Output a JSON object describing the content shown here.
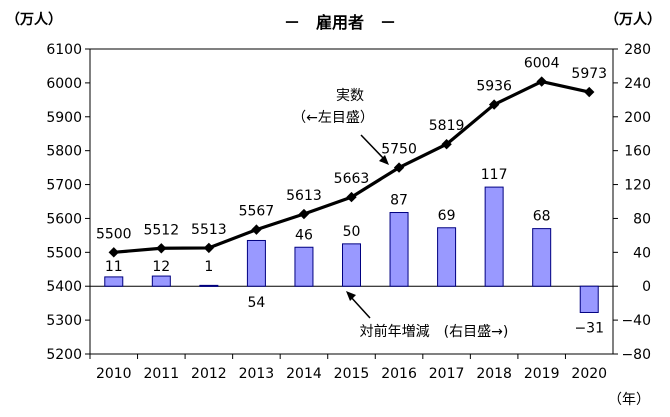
{
  "chart_data": {
    "type": "bar+line",
    "title": "－　雇用者　－",
    "left_unit": "（万人）",
    "right_unit": "（万人）",
    "x_unit": "（年）",
    "categories": [
      "2010",
      "2011",
      "2012",
      "2013",
      "2014",
      "2015",
      "2016",
      "2017",
      "2018",
      "2019",
      "2020"
    ],
    "line": {
      "values": [
        5500,
        5512,
        5513,
        5567,
        5613,
        5663,
        5750,
        5819,
        5936,
        6004,
        5973
      ],
      "labels": [
        "5500",
        "5512",
        "5513",
        "5567",
        "5613",
        "5663",
        "5750",
        "5819",
        "5936",
        "6004",
        "5973"
      ]
    },
    "bars": {
      "values": [
        11,
        12,
        1,
        54,
        46,
        50,
        87,
        69,
        117,
        68,
        -31
      ],
      "labels": [
        "11",
        "12",
        "1",
        "54",
        "46",
        "50",
        "87",
        "69",
        "117",
        "68",
        "−31"
      ]
    },
    "left_axis": {
      "ylim": [
        5200,
        6100
      ],
      "ticks": [
        "5200",
        "5300",
        "5400",
        "5500",
        "5600",
        "5700",
        "5800",
        "5900",
        "6000",
        "6100"
      ]
    },
    "right_axis": {
      "ylim": [
        -80,
        280
      ],
      "ticks": [
        "−80",
        "−40",
        "0",
        "40",
        "80",
        "120",
        "160",
        "200",
        "240",
        "280"
      ]
    },
    "annotation_line": [
      "実数",
      "（←左目盛）"
    ],
    "annotation_bar": "対前年増減　(右目盛→)",
    "colors": {
      "bar_fill": "#9999ff",
      "bar_stroke": "#000080",
      "line": "#000000",
      "marker": "#000000"
    }
  }
}
